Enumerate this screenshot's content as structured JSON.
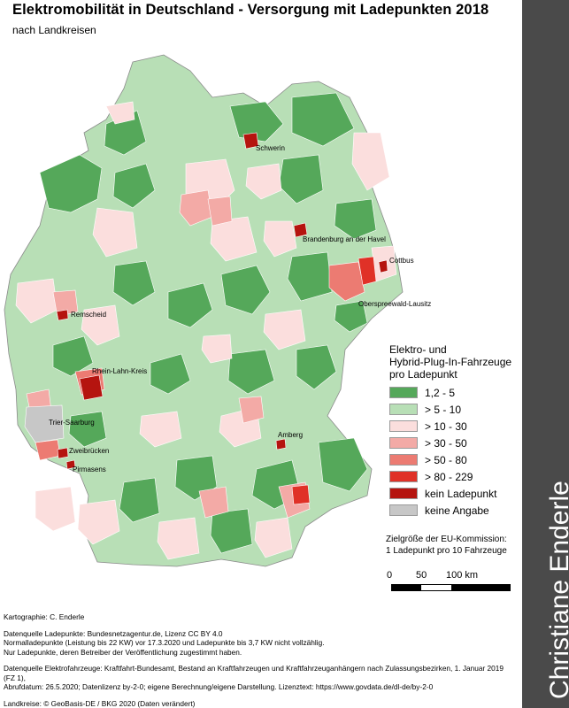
{
  "title": "Elektromobilität in Deutschland - Versorgung mit Ladepunkten 2018",
  "subtitle": "nach Landkreisen",
  "author_banner": "Christiane Enderle",
  "colors": {
    "dark_green": "#55a85a",
    "light_green": "#b8dfb6",
    "pale_pink": "#fbdedd",
    "pink": "#f3aaa6",
    "salmon": "#ec7b72",
    "red": "#e03127",
    "dark_red": "#b5140f",
    "grey": "#c7c7c7",
    "sidebar": "#4a4a4a"
  },
  "legend": {
    "title": "Elektro- und Hybrid-Plug-In-Fahrzeuge pro Ladepunkt",
    "title_lines": [
      "Elektro- und",
      "Hybrid-Plug-In-Fahrzeuge",
      "pro Ladepunkt"
    ],
    "items": [
      {
        "label": "1,2 - 5",
        "color": "#55a85a"
      },
      {
        "label": "> 5 - 10",
        "color": "#b8dfb6"
      },
      {
        "label": "> 10 - 30",
        "color": "#fbdedd"
      },
      {
        "label": "> 30 - 50",
        "color": "#f3aaa6"
      },
      {
        "label": "> 50 - 80",
        "color": "#ec7b72"
      },
      {
        "label": "> 80 - 229",
        "color": "#e03127"
      },
      {
        "label": "kein Ladepunkt",
        "color": "#b5140f"
      },
      {
        "label": "keine Angabe",
        "color": "#c7c7c7"
      }
    ]
  },
  "target_note": {
    "line1": "Zielgröße der EU-Kommission:",
    "line2": "1 Ladepunkt pro 10 Fahrzeuge"
  },
  "scale": {
    "labels": [
      "0",
      "50",
      "100 km"
    ]
  },
  "map_labels": {
    "schwerin": "Schwerin",
    "brandenburg": "Brandenburg an der Havel",
    "cottbus": "Cottbus",
    "oberspreewald": "Oberspreewald-Lausitz",
    "remscheid": "Remscheid",
    "rhein_lahn": "Rhein-Lahn-Kreis",
    "trier": "Trier-Saarburg",
    "amberg": "Amberg",
    "zweibruecken": "Zweibrücken",
    "pirmasens": "Pirmasens"
  },
  "credits": {
    "cartography": "Kartographie: C. Enderle",
    "source_chargers_1": "Datenquelle Ladepunkte: Bundesnetzagentur.de, Lizenz CC BY 4.0",
    "source_chargers_2": "Normalladepunkte (Leistung bis 22 KW) vor 17.3.2020 und Ladepunkte bis 3,7 KW nicht vollzählig.",
    "source_chargers_3": "Nur Ladepunkte, deren Betreiber der Veröffentlichung zugestimmt haben.",
    "source_vehicles_1": "Datenquelle Elektrofahrzeuge: Kraftfahrt-Bundesamt, Bestand an Kraftfahrzeugen und Kraftfahrzeuganhängern nach Zulassungsbezirken, 1. Januar 2019 (FZ 1),",
    "source_vehicles_2": "Abrufdatum: 26.5.2020; Datenlizenz by-2-0; eigene Berechnung/eigene Darstellung. Lizenztext: https://www.govdata.de/dl-de/by-2-0",
    "boundaries": "Landkreise: © GeoBasis-DE / BKG 2020 (Daten verändert)"
  }
}
